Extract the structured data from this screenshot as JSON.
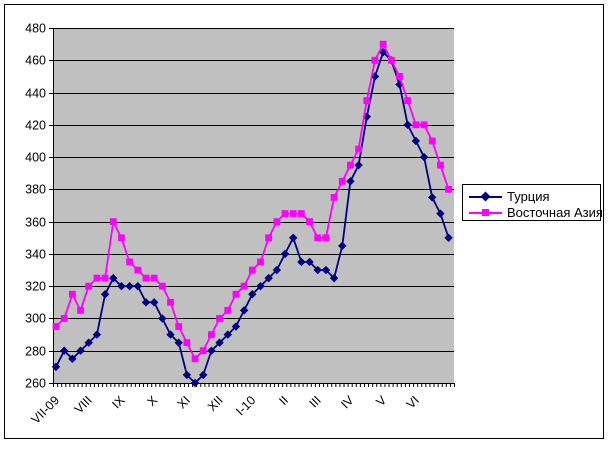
{
  "figure": {
    "background": "#ffffff",
    "border_color": "#000000",
    "plot_bg_color": "#c0c0c0",
    "gridline_color": "#000000",
    "axis_color": "#000000",
    "text_color": "#000000"
  },
  "chart_data": {
    "type": "line",
    "title": "",
    "xlabel": "",
    "ylabel": "",
    "grid": true,
    "legend_position": "right",
    "x_axis": {
      "labels": [
        "VII-09",
        "VIII",
        "IX",
        "X",
        "XI",
        "XII",
        "I-10",
        "II",
        "III",
        "IV",
        "V",
        "VI"
      ],
      "label_point_indices": [
        0,
        4,
        8,
        12,
        16,
        20,
        24,
        28,
        32,
        36,
        40,
        44
      ],
      "points_per_series": 49,
      "label_rotation_deg": -45
    },
    "y_axis": {
      "min": 260,
      "max": 480,
      "step": 20,
      "tick_labels": [
        "260",
        "280",
        "300",
        "320",
        "340",
        "360",
        "380",
        "400",
        "420",
        "440",
        "460",
        "480"
      ]
    },
    "series": [
      {
        "name": "Турция",
        "color": "#000080",
        "marker": "diamond",
        "values": [
          270,
          280,
          275,
          280,
          285,
          290,
          315,
          325,
          320,
          320,
          320,
          310,
          310,
          300,
          290,
          285,
          265,
          260,
          265,
          280,
          285,
          290,
          295,
          305,
          315,
          320,
          325,
          330,
          340,
          350,
          335,
          335,
          330,
          330,
          325,
          345,
          385,
          395,
          425,
          450,
          465,
          460,
          445,
          420,
          410,
          400,
          375,
          365,
          350
        ]
      },
      {
        "name": "Восточная Азия",
        "color": "#ff00ff",
        "marker": "square",
        "values": [
          295,
          300,
          315,
          305,
          320,
          325,
          325,
          360,
          350,
          335,
          330,
          325,
          325,
          320,
          310,
          295,
          285,
          275,
          280,
          290,
          300,
          305,
          315,
          320,
          330,
          335,
          350,
          360,
          365,
          365,
          365,
          360,
          350,
          350,
          375,
          385,
          395,
          405,
          435,
          460,
          470,
          460,
          450,
          435,
          420,
          420,
          410,
          395,
          380
        ]
      }
    ]
  }
}
